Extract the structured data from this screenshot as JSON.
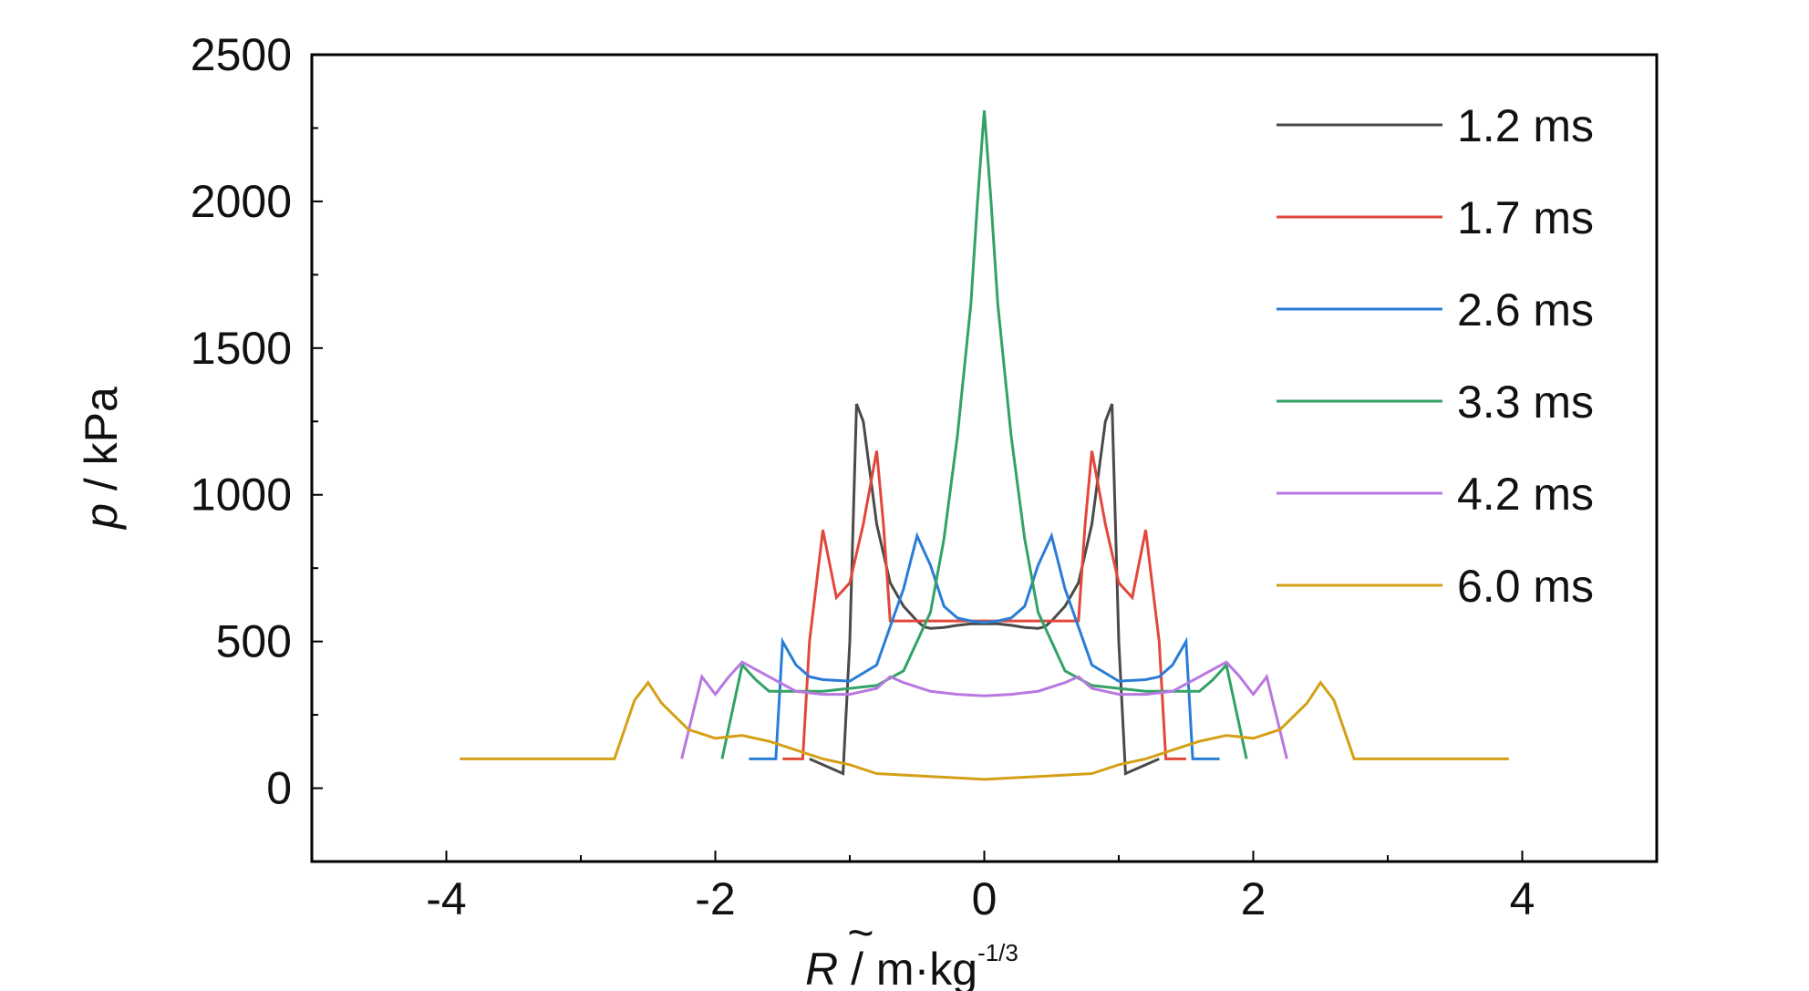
{
  "chart_data": {
    "type": "line",
    "xlabel": {
      "symbol": "R",
      "mark": "~",
      "text": " / m·kg",
      "sup": "-1/3"
    },
    "ylabel": {
      "symbol": "p",
      "text": " / kPa"
    },
    "xlim": [
      -5,
      5
    ],
    "ylim": [
      -250,
      2500
    ],
    "xticks": [
      -4,
      -2,
      0,
      2,
      4
    ],
    "xtick_labels": [
      "-4",
      "-2",
      "0",
      "2",
      "4"
    ],
    "yticks": [
      0,
      500,
      1000,
      1500,
      2000,
      2500
    ],
    "ytick_labels": [
      "0",
      "500",
      "1000",
      "1500",
      "2000",
      "2500"
    ],
    "grid": false,
    "legend_position": "top-right",
    "series": [
      {
        "name": "1.2 ms",
        "color": "#4a4a4a",
        "x": [
          -1.3,
          -1.05,
          -1.0,
          -0.95,
          -0.9,
          -0.8,
          -0.7,
          -0.6,
          -0.5,
          -0.45,
          -0.4,
          -0.3,
          -0.2,
          -0.1,
          0,
          0.1,
          0.2,
          0.3,
          0.4,
          0.45,
          0.5,
          0.6,
          0.7,
          0.8,
          0.9,
          0.95,
          1.0,
          1.05,
          1.3
        ],
        "y": [
          100,
          50,
          500,
          1310,
          1250,
          900,
          700,
          620,
          570,
          550,
          545,
          548,
          555,
          560,
          560,
          560,
          555,
          548,
          545,
          550,
          570,
          620,
          700,
          900,
          1250,
          1310,
          500,
          50,
          100
        ]
      },
      {
        "name": "1.7 ms",
        "color": "#e2473b",
        "x": [
          -1.5,
          -1.35,
          -1.3,
          -1.2,
          -1.1,
          -1.0,
          -0.9,
          -0.8,
          -0.75,
          -0.7,
          0.7,
          0.75,
          0.8,
          0.9,
          1.0,
          1.1,
          1.2,
          1.3,
          1.35,
          1.5
        ],
        "y": [
          100,
          100,
          500,
          880,
          650,
          700,
          900,
          1150,
          900,
          570,
          570,
          900,
          1150,
          900,
          700,
          650,
          880,
          500,
          100,
          100
        ]
      },
      {
        "name": "2.6 ms",
        "color": "#2a7dd6",
        "x": [
          -1.75,
          -1.55,
          -1.5,
          -1.4,
          -1.3,
          -1.2,
          -1.0,
          -0.8,
          -0.6,
          -0.5,
          -0.4,
          -0.3,
          -0.2,
          -0.1,
          0,
          0.1,
          0.2,
          0.3,
          0.4,
          0.5,
          0.6,
          0.8,
          1.0,
          1.2,
          1.3,
          1.4,
          1.5,
          1.55,
          1.75
        ],
        "y": [
          100,
          100,
          500,
          420,
          380,
          370,
          365,
          420,
          680,
          860,
          760,
          620,
          580,
          570,
          565,
          570,
          580,
          620,
          760,
          860,
          680,
          420,
          365,
          370,
          380,
          420,
          500,
          100,
          100
        ]
      },
      {
        "name": "3.3 ms",
        "color": "#32a266",
        "x": [
          -1.95,
          -1.8,
          -1.7,
          -1.6,
          -1.5,
          -1.2,
          -0.8,
          -0.6,
          -0.4,
          -0.3,
          -0.2,
          -0.1,
          -0.05,
          0,
          0.05,
          0.1,
          0.2,
          0.3,
          0.4,
          0.6,
          0.8,
          1.2,
          1.5,
          1.6,
          1.7,
          1.8,
          1.95
        ],
        "y": [
          100,
          420,
          370,
          330,
          330,
          330,
          350,
          400,
          600,
          850,
          1200,
          1650,
          2000,
          2310,
          2000,
          1650,
          1200,
          850,
          600,
          400,
          350,
          330,
          330,
          330,
          370,
          420,
          100
        ]
      },
      {
        "name": "4.2 ms",
        "color": "#b878e0",
        "x": [
          -2.25,
          -2.1,
          -2.0,
          -1.9,
          -1.8,
          -1.6,
          -1.4,
          -1.2,
          -1.0,
          -0.9,
          -0.8,
          -0.7,
          -0.6,
          -0.4,
          -0.2,
          0,
          0.2,
          0.4,
          0.6,
          0.7,
          0.8,
          0.9,
          1.0,
          1.2,
          1.4,
          1.6,
          1.8,
          1.9,
          2.0,
          2.1,
          2.25
        ],
        "y": [
          100,
          380,
          320,
          380,
          430,
          380,
          330,
          320,
          320,
          330,
          340,
          380,
          360,
          330,
          320,
          315,
          320,
          330,
          360,
          380,
          340,
          330,
          320,
          320,
          330,
          380,
          430,
          380,
          320,
          380,
          100
        ]
      },
      {
        "name": "6.0 ms",
        "color": "#d4a017",
        "x": [
          -3.9,
          -3.5,
          -3.0,
          -2.75,
          -2.6,
          -2.5,
          -2.4,
          -2.2,
          -2.0,
          -1.8,
          -1.6,
          -1.4,
          -1.2,
          -1.0,
          -0.8,
          -0.6,
          -0.4,
          -0.2,
          0,
          0.2,
          0.4,
          0.6,
          0.8,
          1.0,
          1.2,
          1.4,
          1.6,
          1.8,
          2.0,
          2.2,
          2.4,
          2.5,
          2.6,
          2.75,
          3.0,
          3.5,
          3.9
        ],
        "y": [
          100,
          100,
          100,
          100,
          300,
          360,
          290,
          200,
          170,
          180,
          160,
          130,
          100,
          80,
          50,
          45,
          40,
          35,
          30,
          35,
          40,
          45,
          50,
          80,
          100,
          130,
          160,
          180,
          170,
          200,
          290,
          360,
          300,
          100,
          100,
          100,
          100
        ]
      }
    ]
  }
}
